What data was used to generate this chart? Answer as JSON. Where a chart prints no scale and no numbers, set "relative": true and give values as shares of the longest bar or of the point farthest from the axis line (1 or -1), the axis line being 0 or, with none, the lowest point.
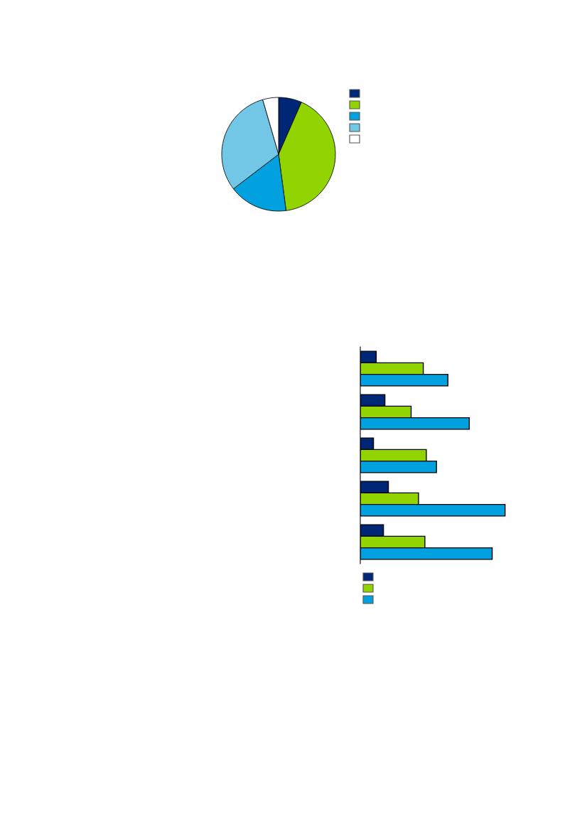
{
  "chart_data": [
    {
      "type": "pie",
      "categories": [
        null,
        null,
        null,
        null,
        null
      ],
      "values": [
        6.6,
        41.3,
        16.7,
        30.9,
        4.5
      ],
      "colors": [
        "#002776",
        "#92d400",
        "#00a1de",
        "#72c7e7",
        "#ffffff"
      ]
    },
    {
      "type": "bar",
      "orientation": "horizontal",
      "relative": true,
      "categories": [
        null,
        null,
        null,
        null,
        null
      ],
      "series": [
        {
          "color": "#002776",
          "values": [
            0.11,
            0.17,
            0.091,
            0.194,
            0.16
          ]
        },
        {
          "color": "#92d400",
          "values": [
            0.435,
            0.351,
            0.456,
            0.402,
            0.446
          ]
        },
        {
          "color": "#00a1de",
          "values": [
            0.605,
            0.753,
            0.526,
            1,
            0.911
          ]
        }
      ]
    }
  ]
}
